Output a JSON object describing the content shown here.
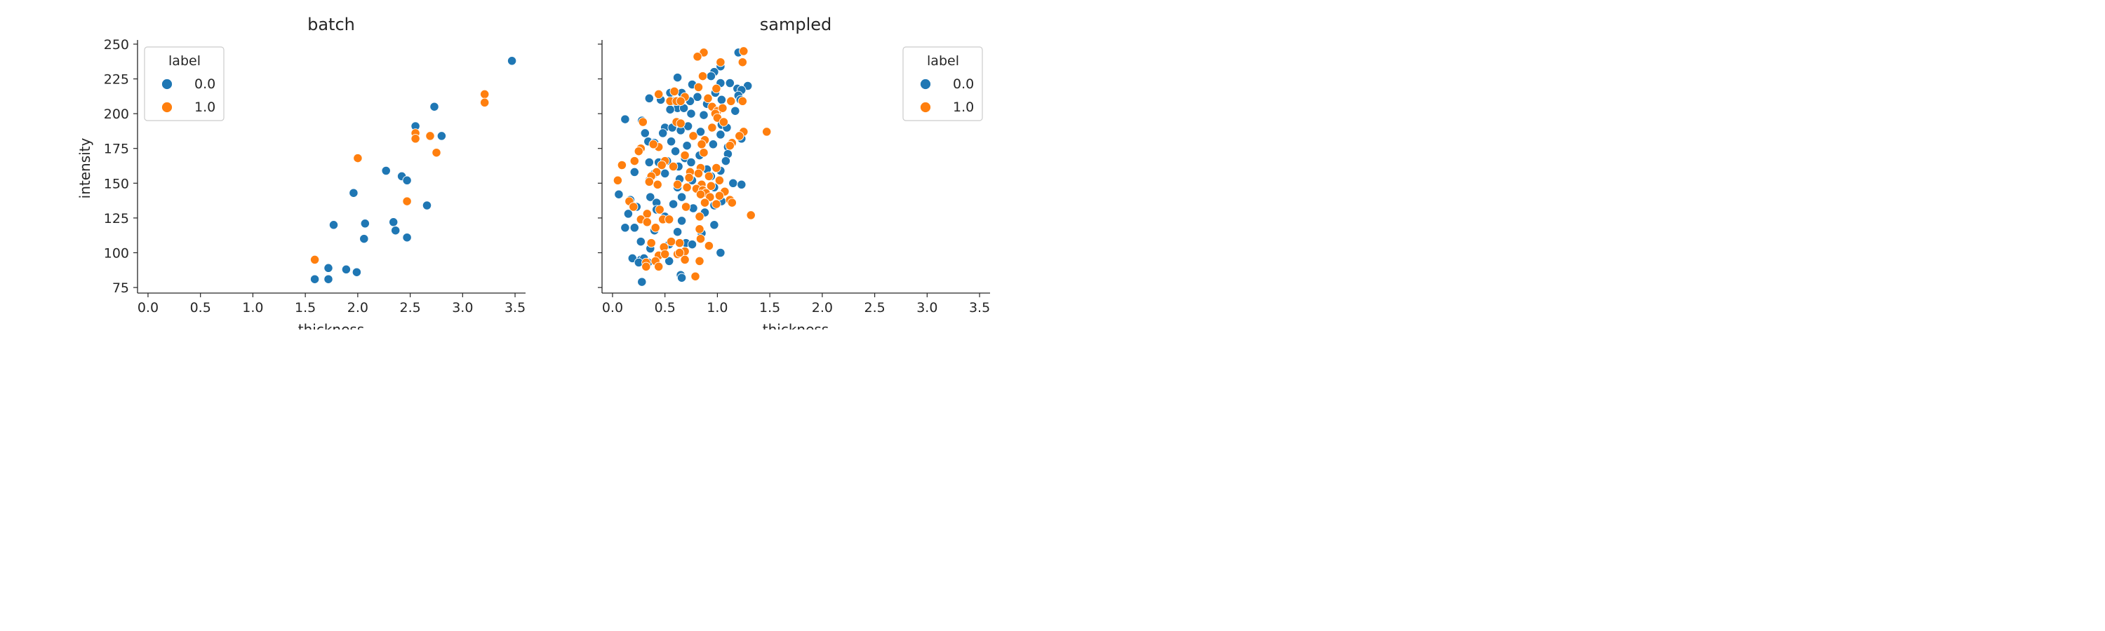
{
  "figure": {
    "panels": [
      {
        "title": "batch",
        "xlabel": "thickness",
        "ylabel": "intensity",
        "legend": {
          "title": "label",
          "placement": "upper-left",
          "entries": [
            "0.0",
            "1.0"
          ]
        }
      },
      {
        "title": "sampled",
        "xlabel": "thickness",
        "ylabel": "",
        "legend": {
          "title": "label",
          "placement": "upper-right",
          "entries": [
            "0.0",
            "1.0"
          ]
        }
      }
    ]
  },
  "colors": {
    "label_0": "#1f77b4",
    "label_1": "#ff7f0e"
  },
  "chart_data": [
    {
      "type": "scatter",
      "title": "batch",
      "xlabel": "thickness",
      "ylabel": "intensity",
      "xlim": [
        -0.1,
        3.6
      ],
      "ylim": [
        71,
        253
      ],
      "xticks": [
        "0.0",
        "0.5",
        "1.0",
        "1.5",
        "2.0",
        "2.5",
        "3.0",
        "3.5"
      ],
      "yticks": [
        "75",
        "100",
        "125",
        "150",
        "175",
        "200",
        "225",
        "250"
      ],
      "grid": false,
      "legend_title": "label",
      "series": [
        {
          "name": "0.0",
          "points": [
            [
              3.47,
              238
            ],
            [
              2.73,
              205
            ],
            [
              2.55,
              191
            ],
            [
              2.8,
              184
            ],
            [
              2.27,
              159
            ],
            [
              2.42,
              155
            ],
            [
              2.47,
              152
            ],
            [
              1.96,
              143
            ],
            [
              2.66,
              134
            ],
            [
              1.77,
              120
            ],
            [
              2.07,
              121
            ],
            [
              2.34,
              122
            ],
            [
              2.36,
              116
            ],
            [
              2.06,
              110
            ],
            [
              2.47,
              111
            ],
            [
              1.72,
              89
            ],
            [
              1.89,
              88
            ],
            [
              1.99,
              86
            ],
            [
              1.59,
              81
            ],
            [
              1.72,
              81
            ]
          ]
        },
        {
          "name": "1.0",
          "points": [
            [
              3.21,
              214
            ],
            [
              3.21,
              208
            ],
            [
              2.69,
              184
            ],
            [
              2.55,
              186
            ],
            [
              2.55,
              182
            ],
            [
              2.75,
              172
            ],
            [
              2.0,
              168
            ],
            [
              2.47,
              137
            ],
            [
              1.59,
              95
            ]
          ]
        }
      ]
    },
    {
      "type": "scatter",
      "title": "sampled",
      "xlabel": "thickness",
      "ylabel": "",
      "xlim": [
        -0.1,
        3.6
      ],
      "ylim": [
        71,
        253
      ],
      "xticks": [
        "0.0",
        "0.5",
        "1.0",
        "1.5",
        "2.0",
        "2.5",
        "3.0",
        "3.5"
      ],
      "yticks": [
        "75",
        "100",
        "125",
        "150",
        "175",
        "200",
        "225",
        "250"
      ],
      "grid": false,
      "legend_title": "label",
      "series": [
        {
          "name": "0.0",
          "points": [
            [
              1.2,
              244
            ],
            [
              1.03,
              234
            ],
            [
              0.97,
              230
            ],
            [
              0.62,
              226
            ],
            [
              0.94,
              227
            ],
            [
              1.03,
              222
            ],
            [
              1.12,
              222
            ],
            [
              0.76,
              221
            ],
            [
              1.29,
              220
            ],
            [
              1.19,
              218
            ],
            [
              1.23,
              217
            ],
            [
              0.66,
              215
            ],
            [
              0.55,
              215
            ],
            [
              0.98,
              215
            ],
            [
              0.81,
              212
            ],
            [
              1.2,
              213
            ],
            [
              0.35,
              211
            ],
            [
              0.46,
              210
            ],
            [
              0.58,
              209
            ],
            [
              0.74,
              209
            ],
            [
              1.04,
              210
            ],
            [
              1.22,
              210
            ],
            [
              0.9,
              207
            ],
            [
              0.62,
              204
            ],
            [
              0.68,
              204
            ],
            [
              0.55,
              203
            ],
            [
              0.75,
              200
            ],
            [
              0.87,
              199
            ],
            [
              1.17,
              202
            ],
            [
              0.12,
              196
            ],
            [
              0.28,
              195
            ],
            [
              0.72,
              191
            ],
            [
              0.5,
              190
            ],
            [
              0.57,
              190
            ],
            [
              0.65,
              188
            ],
            [
              1.04,
              192
            ],
            [
              1.09,
              190
            ],
            [
              0.31,
              186
            ],
            [
              0.48,
              186
            ],
            [
              0.84,
              187
            ],
            [
              1.03,
              185
            ],
            [
              1.23,
              182
            ],
            [
              0.34,
              180
            ],
            [
              0.4,
              179
            ],
            [
              0.56,
              180
            ],
            [
              0.71,
              177
            ],
            [
              0.96,
              178
            ],
            [
              1.1,
              176
            ],
            [
              0.6,
              173
            ],
            [
              1.1,
              171
            ],
            [
              0.83,
              170
            ],
            [
              0.52,
              166
            ],
            [
              0.69,
              168
            ],
            [
              0.35,
              165
            ],
            [
              0.44,
              165
            ],
            [
              0.75,
              165
            ],
            [
              1.08,
              166
            ],
            [
              0.63,
              162
            ],
            [
              0.9,
              160
            ],
            [
              1.03,
              159
            ],
            [
              0.21,
              158
            ],
            [
              0.4,
              157
            ],
            [
              0.5,
              157
            ],
            [
              0.94,
              155
            ],
            [
              0.35,
              152
            ],
            [
              0.64,
              153
            ],
            [
              0.76,
              152
            ],
            [
              1.15,
              150
            ],
            [
              1.23,
              149
            ],
            [
              0.62,
              147
            ],
            [
              0.97,
              147
            ],
            [
              0.06,
              142
            ],
            [
              0.66,
              140
            ],
            [
              0.36,
              140
            ],
            [
              0.17,
              138
            ],
            [
              0.42,
              136
            ],
            [
              0.58,
              135
            ],
            [
              0.97,
              134
            ],
            [
              0.77,
              132
            ],
            [
              1.04,
              137
            ],
            [
              0.23,
              133
            ],
            [
              0.42,
              131
            ],
            [
              0.15,
              128
            ],
            [
              0.88,
              129
            ],
            [
              0.5,
              126
            ],
            [
              0.66,
              123
            ],
            [
              0.97,
              120
            ],
            [
              0.12,
              118
            ],
            [
              0.21,
              118
            ],
            [
              0.4,
              116
            ],
            [
              0.62,
              115
            ],
            [
              0.85,
              114
            ],
            [
              0.27,
              108
            ],
            [
              0.54,
              106
            ],
            [
              0.7,
              107
            ],
            [
              0.76,
              106
            ],
            [
              1.03,
              100
            ],
            [
              0.36,
              103
            ],
            [
              0.27,
              95
            ],
            [
              0.3,
              96
            ],
            [
              0.19,
              96
            ],
            [
              0.34,
              93
            ],
            [
              0.25,
              93
            ],
            [
              0.54,
              94
            ],
            [
              0.65,
              84
            ],
            [
              0.66,
              82
            ],
            [
              0.28,
              79
            ]
          ]
        },
        {
          "name": "1.0",
          "points": [
            [
              1.25,
              245
            ],
            [
              0.87,
              244
            ],
            [
              0.81,
              241
            ],
            [
              1.03,
              237
            ],
            [
              1.24,
              237
            ],
            [
              0.86,
              227
            ],
            [
              0.82,
              219
            ],
            [
              0.99,
              218
            ],
            [
              0.44,
              214
            ],
            [
              0.59,
              216
            ],
            [
              0.69,
              212
            ],
            [
              0.91,
              211
            ],
            [
              0.55,
              209
            ],
            [
              0.61,
              209
            ],
            [
              0.65,
              209
            ],
            [
              1.13,
              209
            ],
            [
              1.24,
              209
            ],
            [
              0.95,
              205
            ],
            [
              1.0,
              202
            ],
            [
              1.05,
              204
            ],
            [
              0.98,
              200
            ],
            [
              1.0,
              197
            ],
            [
              0.61,
              194
            ],
            [
              0.65,
              193
            ],
            [
              1.06,
              194
            ],
            [
              0.29,
              194
            ],
            [
              0.95,
              190
            ],
            [
              1.25,
              187
            ],
            [
              1.47,
              187
            ],
            [
              0.77,
              184
            ],
            [
              1.21,
              184
            ],
            [
              0.88,
              181
            ],
            [
              1.14,
              179
            ],
            [
              0.85,
              178
            ],
            [
              1.12,
              177
            ],
            [
              0.44,
              176
            ],
            [
              0.27,
              175
            ],
            [
              0.39,
              178
            ],
            [
              0.25,
              173
            ],
            [
              0.87,
              172
            ],
            [
              0.69,
              170
            ],
            [
              0.21,
              166
            ],
            [
              0.5,
              166
            ],
            [
              0.09,
              163
            ],
            [
              0.47,
              163
            ],
            [
              0.58,
              162
            ],
            [
              0.84,
              161
            ],
            [
              0.99,
              161
            ],
            [
              0.42,
              158
            ],
            [
              0.74,
              158
            ],
            [
              0.82,
              157
            ],
            [
              0.37,
              155
            ],
            [
              0.92,
              155
            ],
            [
              0.73,
              154
            ],
            [
              0.05,
              152
            ],
            [
              1.02,
              152
            ],
            [
              0.35,
              151
            ],
            [
              0.43,
              149
            ],
            [
              0.62,
              149
            ],
            [
              0.85,
              149
            ],
            [
              0.94,
              148
            ],
            [
              0.71,
              147
            ],
            [
              0.8,
              146
            ],
            [
              0.86,
              145
            ],
            [
              1.07,
              144
            ],
            [
              0.89,
              143
            ],
            [
              0.84,
              142
            ],
            [
              1.02,
              141
            ],
            [
              0.93,
              140
            ],
            [
              1.12,
              138
            ],
            [
              0.16,
              137
            ],
            [
              0.88,
              136
            ],
            [
              1.14,
              136
            ],
            [
              0.99,
              135
            ],
            [
              0.2,
              133
            ],
            [
              0.7,
              133
            ],
            [
              0.33,
              128
            ],
            [
              0.45,
              131
            ],
            [
              1.32,
              127
            ],
            [
              0.83,
              126
            ],
            [
              0.27,
              124
            ],
            [
              0.48,
              124
            ],
            [
              0.54,
              124
            ],
            [
              0.33,
              122
            ],
            [
              0.41,
              118
            ],
            [
              0.83,
              117
            ],
            [
              0.56,
              108
            ],
            [
              0.37,
              107
            ],
            [
              0.64,
              107
            ],
            [
              0.49,
              104
            ],
            [
              0.92,
              105
            ],
            [
              0.69,
              101
            ],
            [
              0.44,
              98
            ],
            [
              0.5,
              99
            ],
            [
              0.62,
              99
            ],
            [
              0.69,
              95
            ],
            [
              0.32,
              93
            ],
            [
              0.41,
              94
            ],
            [
              0.83,
              94
            ],
            [
              0.32,
              90
            ],
            [
              0.44,
              90
            ],
            [
              0.79,
              83
            ],
            [
              0.64,
              100
            ],
            [
              0.84,
              110
            ]
          ]
        }
      ]
    }
  ]
}
